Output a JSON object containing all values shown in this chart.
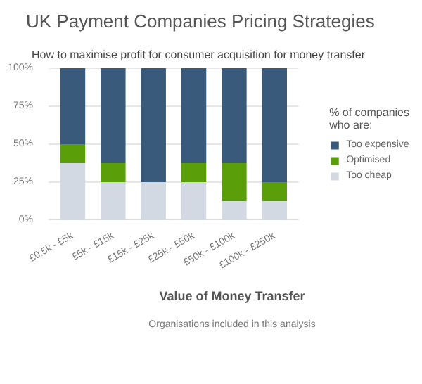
{
  "chart_data": {
    "type": "bar",
    "stacked": true,
    "title": "UK Payment Companies Pricing Strategies",
    "subtitle": "How to maximise profit for consumer acquisition for money transfer",
    "xlabel": "Value of Money Transfer",
    "legend_title": "% of companies\nwho are:",
    "annotations": [
      "Organisations included in this analysis"
    ],
    "categories": [
      "£0.5k - £5k",
      "£5k - £15k",
      "£15k - £25k",
      "£25k - £50k",
      "£50k - £100k",
      "£100k - £250k"
    ],
    "series": [
      {
        "name": "Too cheap",
        "color": "#d2d9e3",
        "values": [
          37.5,
          25,
          25,
          25,
          12.5,
          12.5
        ]
      },
      {
        "name": "Optimised",
        "color": "#5a9e0a",
        "values": [
          12.5,
          12.5,
          0,
          12.5,
          25,
          12.5
        ]
      },
      {
        "name": "Too expensive",
        "color": "#3a5a7c",
        "values": [
          50,
          62.5,
          75,
          62.5,
          62.5,
          75
        ]
      }
    ],
    "ylim": [
      0,
      100
    ],
    "yticks": [
      {
        "value": 0,
        "label": "0%"
      },
      {
        "value": 25,
        "label": "25%"
      },
      {
        "value": 50,
        "label": "50%"
      },
      {
        "value": 75,
        "label": "75%"
      },
      {
        "value": 100,
        "label": "100%"
      }
    ],
    "grid": "y",
    "legend": "right"
  }
}
